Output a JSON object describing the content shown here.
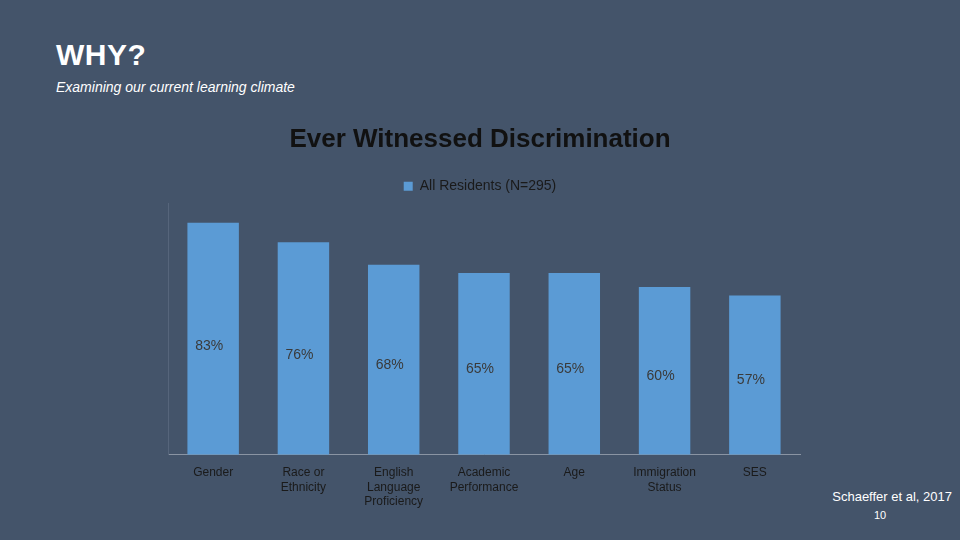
{
  "slide": {
    "heading": "WHY?",
    "subheading": "Examining our current learning climate",
    "source": "Schaeffer et al, 2017",
    "page": "10"
  },
  "chart_data": {
    "type": "bar",
    "title": "Ever Witnessed Discrimination",
    "categories": [
      "Gender",
      "Race or Ethnicity",
      "English Language Proficiency",
      "Academic Performance",
      "Age",
      "Immigration Status",
      "SES"
    ],
    "series": [
      {
        "name": "All Residents (N=295)",
        "color": "#5b9bd5",
        "values": [
          83,
          76,
          68,
          65,
          65,
          60,
          57
        ],
        "value_labels": [
          "83%",
          "76%",
          "68%",
          "65%",
          "65%",
          "60%",
          "57%"
        ]
      }
    ],
    "ylim": [
      0,
      90
    ],
    "grid": false,
    "legend": "top",
    "data_labels": true,
    "tick_labels": "x"
  }
}
